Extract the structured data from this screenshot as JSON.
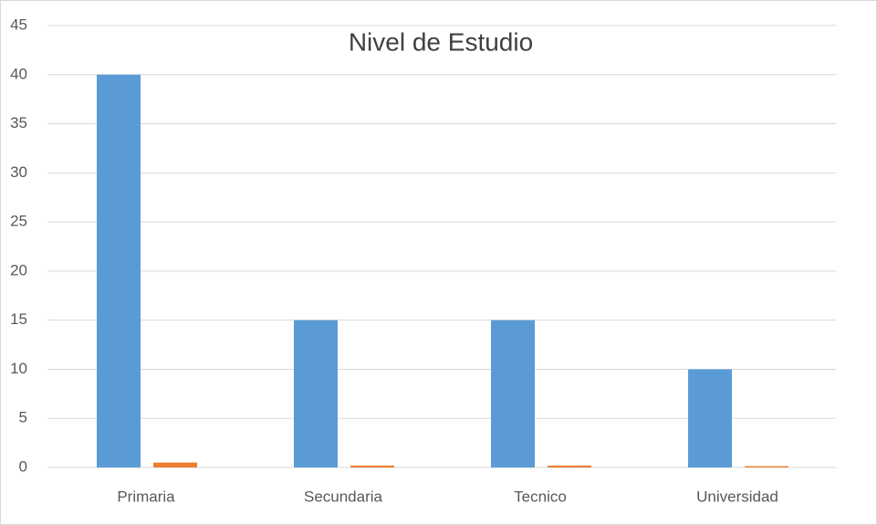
{
  "chart_data": {
    "type": "bar",
    "title": "Nivel de Estudio",
    "categories": [
      "Primaria",
      "Secundaria",
      "Tecnico",
      "Universidad"
    ],
    "series": [
      {
        "color": "#5b9bd5",
        "values": [
          40,
          15,
          15,
          10
        ]
      },
      {
        "color": "#ed7d31",
        "values": [
          0.5,
          0.19,
          0.19,
          0.13
        ]
      }
    ],
    "ylim": [
      0,
      45
    ],
    "yticks": [
      0,
      5,
      10,
      15,
      20,
      25,
      30,
      35,
      40,
      45
    ],
    "grid": true
  }
}
